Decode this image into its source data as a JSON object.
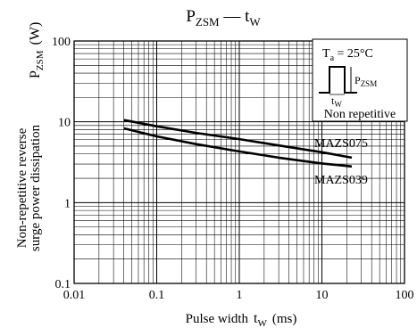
{
  "chart_data": {
    "type": "line",
    "title": {
      "main": "P",
      "main_sub": "ZSM",
      "sep": " — ",
      "var": "t",
      "var_sub": "W"
    },
    "x_axis": {
      "label_text": "Pulse width",
      "label_var": "t",
      "label_var_sub": "W",
      "label_unit": "(ms)",
      "scale": "log",
      "range": [
        0.01,
        100
      ],
      "tick_labels": [
        "0.01",
        "0.1",
        "1",
        "10",
        "100"
      ]
    },
    "y_axis": {
      "label_line1": "Non-repetitive reverse",
      "label_line2": "surge power dissipation",
      "label_var": "P",
      "label_var_sub": "ZSM",
      "label_unit": "(W)",
      "scale": "log",
      "range": [
        0.1,
        100
      ],
      "tick_labels": [
        "0.1",
        "1",
        "10",
        "100"
      ]
    },
    "grid": true,
    "series": [
      {
        "name": "MAZS075",
        "x": [
          0.04,
          0.1,
          0.3,
          1,
          3,
          10,
          23
        ],
        "y": [
          10.5,
          8.8,
          7.3,
          6.1,
          5.1,
          4.2,
          3.6
        ]
      },
      {
        "name": "MAZS039",
        "x": [
          0.04,
          0.1,
          0.3,
          1,
          3,
          10,
          23
        ],
        "y": [
          8.3,
          6.6,
          5.3,
          4.3,
          3.6,
          3.05,
          2.8
        ]
      }
    ],
    "annotation_box": {
      "temp_var": "T",
      "temp_sub": "a",
      "temp_value": " = 25°C",
      "pulse_height_var": "P",
      "pulse_height_sub": "ZSM",
      "pulse_width_var": "t",
      "pulse_width_sub": "W",
      "note": "Non repetitive"
    }
  }
}
